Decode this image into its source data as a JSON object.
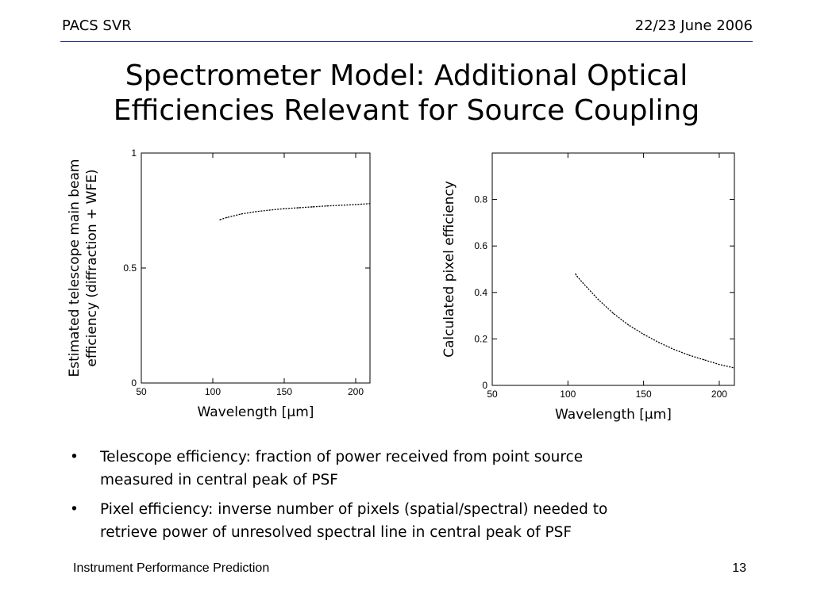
{
  "header": {
    "left": "PACS SVR",
    "right": "22/23 June 2006"
  },
  "title": {
    "line1": "Spectrometer Model: Additional Optical",
    "line2": "Efficiencies Relevant for Source Coupling"
  },
  "chart_data": [
    {
      "type": "line",
      "title": "",
      "xlabel": "Wavelength [µm]",
      "ylabel_lines": [
        "Estimated telescope main beam",
        "efficiency (diffraction + WFE)"
      ],
      "xlim": [
        50,
        210
      ],
      "ylim": [
        0,
        1
      ],
      "xticks": [
        "50",
        "100",
        "150",
        "200"
      ],
      "yticks": [
        "0",
        "0.5",
        "1"
      ],
      "grid": false,
      "series": [
        {
          "x": [
            105,
            110,
            120,
            130,
            140,
            150,
            160,
            170,
            180,
            190,
            200,
            210
          ],
          "y": [
            0.71,
            0.72,
            0.735,
            0.745,
            0.752,
            0.758,
            0.762,
            0.766,
            0.77,
            0.773,
            0.776,
            0.78
          ]
        }
      ]
    },
    {
      "type": "line",
      "title": "",
      "xlabel": "Wavelength [µm]",
      "ylabel_lines": [
        "Calculated pixel efficiency"
      ],
      "xlim": [
        50,
        210
      ],
      "ylim": [
        0,
        1
      ],
      "xticks": [
        "50",
        "100",
        "150",
        "200"
      ],
      "yticks": [
        "0",
        "0.2",
        "0.4",
        "0.6",
        "0.8"
      ],
      "grid": false,
      "series": [
        {
          "x": [
            105,
            106,
            110,
            120,
            130,
            140,
            150,
            160,
            170,
            180,
            190,
            200,
            210
          ],
          "y": [
            0.48,
            0.47,
            0.44,
            0.37,
            0.31,
            0.26,
            0.22,
            0.185,
            0.155,
            0.13,
            0.11,
            0.09,
            0.075
          ]
        }
      ]
    }
  ],
  "bullets": [
    {
      "line1": "Telescope efficiency: fraction of power received from point source",
      "line2": "measured in central peak of PSF"
    },
    {
      "line1": "Pixel efficiency: inverse number of pixels (spatial/spectral) needed to",
      "line2": "retrieve power of unresolved spectral line in central peak of PSF"
    }
  ],
  "footer": {
    "left": "Instrument Performance Prediction",
    "right": "13"
  }
}
